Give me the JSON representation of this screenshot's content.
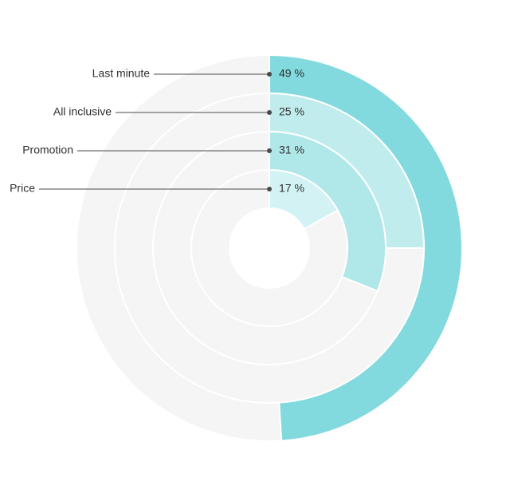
{
  "chart_data": {
    "type": "radial-bar",
    "series": [
      {
        "name": "Last minute",
        "value": 49,
        "value_label": "49 %",
        "color": "#82dade"
      },
      {
        "name": "All inclusive",
        "value": 25,
        "value_label": "25 %",
        "color": "#c1ecee"
      },
      {
        "name": "Promotion",
        "value": 31,
        "value_label": "31 %",
        "color": "#b0e7e9"
      },
      {
        "name": "Price",
        "value": 17,
        "value_label": "17 %",
        "color": "#d3f2f4"
      }
    ],
    "max": 100,
    "track_color": "#f5f5f5",
    "divider_color": "#ffffff",
    "label_line_color": "#4a4a4a"
  }
}
